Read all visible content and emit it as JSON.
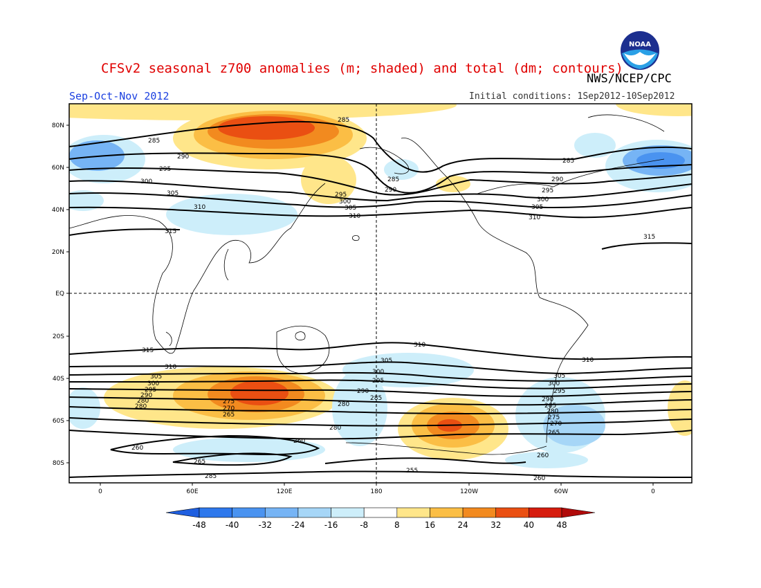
{
  "title": "CFSv2 seasonal z700 anomalies (m; shaded) and total (dm; contours)",
  "agency": "NWS/NCEP/CPC",
  "season": "Sep-Oct-Nov 2012",
  "initial_conditions": "Initial conditions: 1Sep2012-10Sep2012",
  "logo_text": "NOAA",
  "lat_labels": [
    "80N",
    "60N",
    "40N",
    "20N",
    "EQ",
    "20S",
    "40S",
    "60S",
    "80S"
  ],
  "lon_labels": [
    "0",
    "60E",
    "120E",
    "180",
    "120W",
    "60W",
    "0"
  ],
  "colorbar": {
    "labels": [
      "-48",
      "-40",
      "-32",
      "-24",
      "-16",
      "-8",
      "8",
      "16",
      "24",
      "32",
      "40",
      "48"
    ],
    "colors": [
      "#1f5fe0",
      "#2e78ec",
      "#4a93f0",
      "#76b4f5",
      "#a6d6f7",
      "#cdeefa",
      "#ffffff",
      "#ffe68a",
      "#fbbe45",
      "#f28a1f",
      "#ea4f12",
      "#d61c0e",
      "#b00a0a"
    ]
  },
  "contour_labels": [
    "285",
    "290",
    "295",
    "300",
    "305",
    "310",
    "315",
    "255",
    "260",
    "265",
    "270",
    "275",
    "280"
  ]
}
